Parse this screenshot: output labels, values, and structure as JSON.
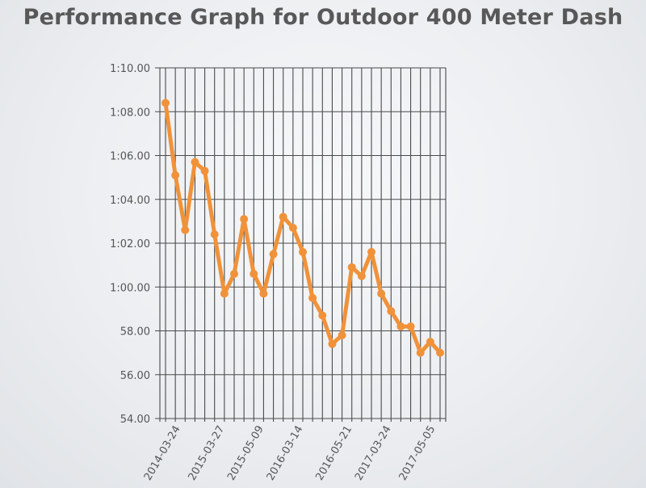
{
  "chart_data": {
    "type": "line",
    "title": "Performance Graph for Outdoor 400 Meter Dash",
    "xlabel": "",
    "ylabel": "",
    "y_tick_labels": [
      "54.00",
      "56.00",
      "58.00",
      "1:00.00",
      "1:02.00",
      "1:04.00",
      "1:06.00",
      "1:08.00",
      "1:10.00"
    ],
    "ylim": [
      54,
      70
    ],
    "x_tick_labels": [
      {
        "index": 1.5,
        "label": "2014-03-24"
      },
      {
        "index": 6,
        "label": "2015-03-27"
      },
      {
        "index": 10,
        "label": "2015-05-09"
      },
      {
        "index": 14,
        "label": "2016-03-14"
      },
      {
        "index": 19,
        "label": "2016-05-21"
      },
      {
        "index": 23,
        "label": "2017-03-24"
      },
      {
        "index": 27.5,
        "label": "2017-05-05"
      }
    ],
    "grid": true,
    "line_color": "#f0923a",
    "series": [
      {
        "values": [
          68.4,
          65.1,
          62.6,
          65.7,
          65.3,
          62.4,
          59.7,
          60.6,
          63.1,
          60.6,
          59.7,
          61.5,
          63.2,
          62.7,
          61.6,
          59.5,
          58.7,
          57.4,
          57.8,
          60.9,
          60.5,
          61.6,
          59.7,
          58.9,
          58.2,
          58.2,
          57.0,
          57.5,
          57.0
        ]
      }
    ]
  }
}
